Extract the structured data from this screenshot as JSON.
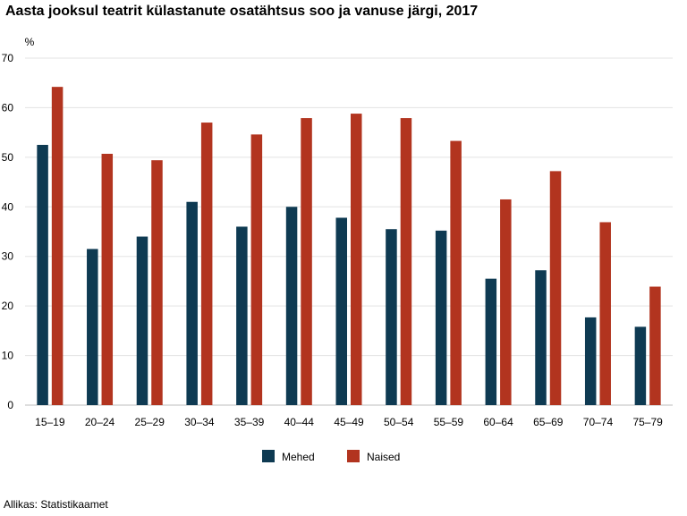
{
  "chart_data": {
    "type": "bar",
    "title": "Aasta jooksul teatrit külastanute osatähtsus soo ja vanuse järgi, 2017",
    "ylabel": "%",
    "xlabel": "",
    "ylim": [
      0,
      70
    ],
    "yticks": [
      0,
      10,
      20,
      30,
      40,
      50,
      60,
      70
    ],
    "grid": true,
    "legend_position": "bottom",
    "categories": [
      "15–19",
      "20–24",
      "25–29",
      "30–34",
      "35–39",
      "40–44",
      "45–49",
      "50–54",
      "55–59",
      "60–64",
      "65–69",
      "70–74",
      "75–79"
    ],
    "series": [
      {
        "name": "Mehed",
        "color": "#0e3a52",
        "values": [
          52.5,
          31.5,
          34.0,
          41.0,
          36.0,
          40.0,
          37.8,
          35.5,
          35.2,
          25.5,
          27.2,
          17.7,
          15.8
        ]
      },
      {
        "name": "Naised",
        "color": "#b2341f",
        "values": [
          64.2,
          50.7,
          49.4,
          57.0,
          54.6,
          57.9,
          58.8,
          57.9,
          53.3,
          41.5,
          47.2,
          36.9,
          23.9
        ]
      }
    ],
    "source": "Allikas: Statistikaamet"
  }
}
